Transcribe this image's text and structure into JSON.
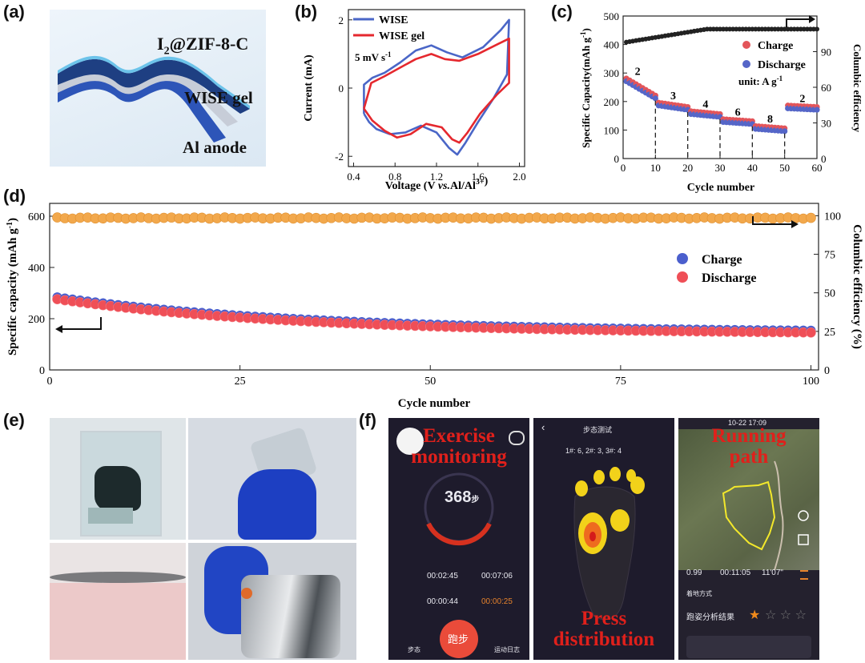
{
  "panels": {
    "a": {
      "label": "(a)",
      "layers": [
        "I2@ZIF-8-C",
        "WISE gel",
        "Al anode"
      ]
    },
    "b": {
      "label": "(b)"
    },
    "c": {
      "label": "(c)"
    },
    "d": {
      "label": "(d)"
    },
    "e": {
      "label": "(e)"
    },
    "f": {
      "label": "(f)",
      "captions": {
        "exercise_1": "Exercise",
        "exercise_2": "monitoring",
        "press_1": "Press",
        "press_2": "distribution",
        "running_1": "Running",
        "running_2": "path"
      },
      "phone1": {
        "steps": "368",
        "steps_unit": "步",
        "t1": "00:02:45",
        "t2": "00:07:06",
        "t3": "00:00:44",
        "t4": "00:00:25",
        "run_button": "跑步",
        "left_tab": "步态",
        "right_tab": "运动日志"
      },
      "phone2": {
        "title": "步态测试",
        "counts": "1#: 6,  2#: 3,  3#: 4"
      },
      "phone3": {
        "time": "10-22 17:09",
        "dist": "0.99",
        "dur": "00:11:05",
        "pace": "11'07\"",
        "section": "着地方式",
        "result": "跑姿分析结果"
      }
    }
  },
  "chart_data": [
    {
      "id": "b",
      "type": "line",
      "title": "",
      "xlabel": "Voltage (V vs.Al/Al3+)",
      "ylabel": "Current (mA)",
      "xlim": [
        0.35,
        2.05
      ],
      "ylim": [
        -2.3,
        2.3
      ],
      "xticks": [
        "0.4",
        "0.8",
        "1.2",
        "1.6",
        "2.0"
      ],
      "yticks": [
        "-2",
        "0",
        "2"
      ],
      "annotation": "5 mV s-1",
      "legend": {
        "position": "top-left",
        "entries": [
          "WISE",
          "WISE gel"
        ]
      },
      "colors": {
        "WISE": "#4a66c7",
        "WISE gel": "#e5282e"
      },
      "series": [
        {
          "name": "WISE",
          "x": [
            0.5,
            0.55,
            0.62,
            0.75,
            0.9,
            1.05,
            1.2,
            1.32,
            1.4,
            1.48,
            1.6,
            1.75,
            1.88,
            1.9,
            1.82,
            1.65,
            1.45,
            1.3,
            1.15,
            1.0,
            0.85,
            0.7,
            0.58,
            0.5,
            0.5
          ],
          "y": [
            -0.75,
            -1.0,
            -1.2,
            -1.35,
            -1.3,
            -1.1,
            -1.3,
            -1.75,
            -1.95,
            -1.6,
            -1.0,
            -0.3,
            0.4,
            2.0,
            1.7,
            1.2,
            0.9,
            1.05,
            1.25,
            1.1,
            0.75,
            0.45,
            0.3,
            0.1,
            -0.75
          ]
        },
        {
          "name": "WISE gel",
          "x": [
            0.5,
            0.58,
            0.7,
            0.82,
            0.95,
            1.1,
            1.25,
            1.35,
            1.42,
            1.5,
            1.62,
            1.78,
            1.9,
            1.9,
            1.8,
            1.6,
            1.42,
            1.28,
            1.15,
            1.0,
            0.85,
            0.7,
            0.57,
            0.5
          ],
          "y": [
            -0.6,
            -0.95,
            -1.25,
            -1.45,
            -1.35,
            -1.05,
            -1.15,
            -1.5,
            -1.6,
            -1.3,
            -0.75,
            -0.2,
            0.15,
            1.45,
            1.3,
            1.0,
            0.8,
            0.85,
            1.0,
            0.85,
            0.6,
            0.35,
            0.15,
            -0.6
          ]
        }
      ]
    },
    {
      "id": "c",
      "type": "scatter",
      "title": "",
      "xlabel": "Cycle number",
      "ylabel": "Specific Capacity(mAh g-1)",
      "y2label": "Columbic efficiency",
      "xlim": [
        0,
        60
      ],
      "ylim": [
        0,
        500
      ],
      "y2lim": [
        0,
        120
      ],
      "xticks": [
        "0",
        "10",
        "20",
        "30",
        "40",
        "50",
        "60"
      ],
      "yticks": [
        "0",
        "100",
        "200",
        "300",
        "400",
        "500"
      ],
      "y2ticks": [
        "0",
        "30",
        "60",
        "90"
      ],
      "legend": {
        "position": "top-right",
        "entries": [
          "Charge",
          "Discharge"
        ],
        "note": "unit: A g-1"
      },
      "rate_labels": [
        "2",
        "3",
        "4",
        "6",
        "8",
        "2"
      ],
      "colors": {
        "Charge": "#e3555a",
        "Discharge": "#5566c8",
        "CE": "#222222"
      },
      "segments": [
        {
          "from": 1,
          "to": 10,
          "start": 275,
          "end": 215
        },
        {
          "from": 11,
          "to": 20,
          "start": 190,
          "end": 175
        },
        {
          "from": 21,
          "to": 30,
          "start": 160,
          "end": 150
        },
        {
          "from": 31,
          "to": 40,
          "start": 132,
          "end": 125
        },
        {
          "from": 41,
          "to": 50,
          "start": 108,
          "end": 100
        },
        {
          "from": 51,
          "to": 60,
          "start": 180,
          "end": 175
        }
      ],
      "ce": {
        "start": 98,
        "end": 109
      }
    },
    {
      "id": "d",
      "type": "scatter",
      "title": "",
      "xlabel": "Cycle number",
      "ylabel": "Specific capacity (mAh g-1)",
      "y2label": "Columbic efficiency (%)",
      "xlim": [
        0,
        101
      ],
      "ylim": [
        0,
        650
      ],
      "y2lim": [
        0,
        108
      ],
      "xticks": [
        "0",
        "25",
        "50",
        "75",
        "100"
      ],
      "yticks": [
        "0",
        "200",
        "400",
        "600"
      ],
      "y2ticks": [
        "0",
        "25",
        "50",
        "75",
        "100"
      ],
      "legend": {
        "position": "center-right",
        "entries": [
          "Charge",
          "Discharge"
        ]
      },
      "colors": {
        "Charge": "#4b5fcd",
        "Discharge": "#ef4f57",
        "CE": "#f2a84c"
      },
      "capacity": {
        "start": 280,
        "mid": 175,
        "end": 150
      },
      "ce_value": 98.5
    }
  ]
}
